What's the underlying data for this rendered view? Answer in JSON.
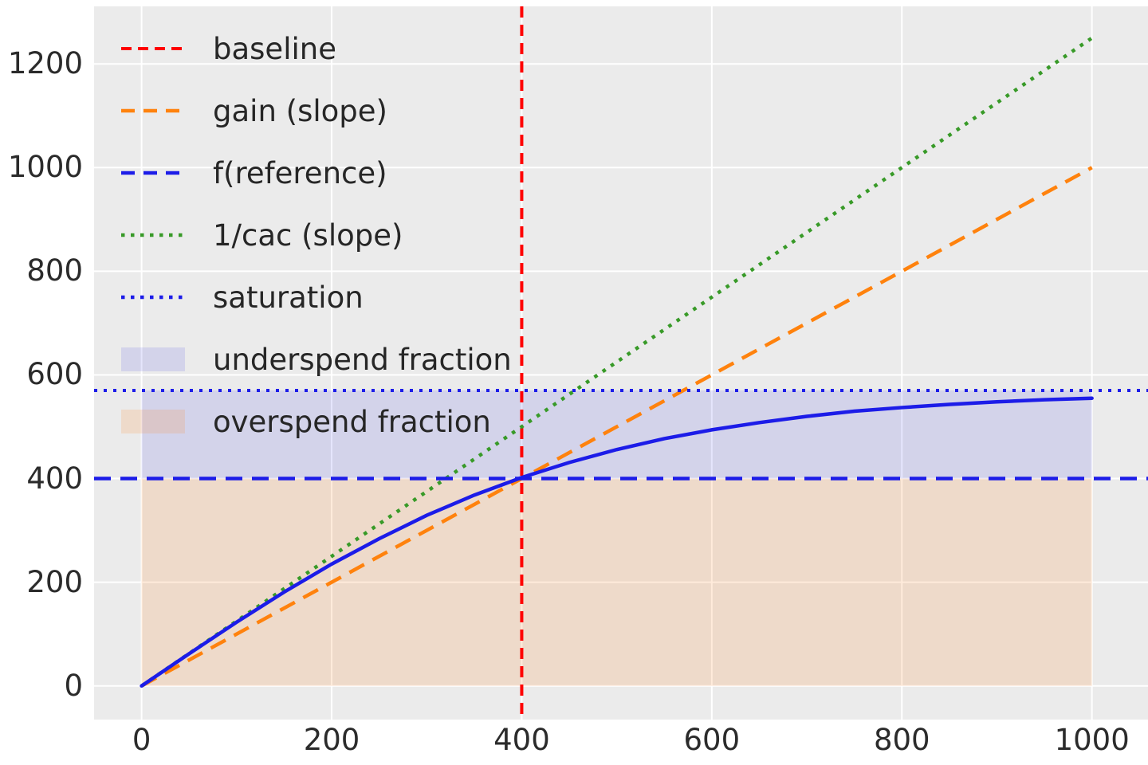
{
  "figure": {
    "bg": "#ffffff",
    "axes_bg": "#ebebeb",
    "grid_color": "#ffffff",
    "tick_color": "#2b2b2b",
    "legend_text_color": "#262626"
  },
  "chart_data": {
    "type": "line",
    "title": "",
    "xlabel": "",
    "ylabel": "",
    "xlim": [
      -50,
      1059
    ],
    "ylim": [
      -65,
      1311
    ],
    "x_ticks": [
      0,
      200,
      400,
      600,
      800,
      1000
    ],
    "y_ticks": [
      0,
      200,
      400,
      600,
      800,
      1000,
      1200
    ],
    "grid": true,
    "legend_position": "upper left",
    "legend": [
      "baseline",
      "gain (slope)",
      "f(reference)",
      "1/cac (slope)",
      "saturation",
      "underspend fraction",
      "overspend fraction"
    ],
    "lines": {
      "baseline": {
        "orientation": "vertical",
        "x": 400,
        "color": "#ff0000",
        "linestyle": "dashed",
        "dash": "14 9",
        "width": 4
      },
      "gain": {
        "orientation": "segment",
        "x": [
          0,
          1000
        ],
        "y": [
          0,
          1000
        ],
        "slope": 1,
        "color": "#ff820d",
        "linestyle": "dashed",
        "dash": "21 12",
        "width": 4.5
      },
      "f_reference": {
        "orientation": "horizontal",
        "y": 400,
        "color": "#1c1ce8",
        "linestyle": "dashed",
        "dash": "21 12",
        "width": 4.5
      },
      "inv_cac": {
        "orientation": "segment",
        "x": [
          0,
          1000
        ],
        "y": [
          0,
          1250
        ],
        "slope": 1.25,
        "color": "#389a28",
        "linestyle": "dotted",
        "dash": "4.5 8",
        "width": 4.5
      },
      "saturation": {
        "orientation": "horizontal",
        "y": 570,
        "color": "#1c1ce8",
        "linestyle": "dotted",
        "dash": "4 8",
        "width": 4
      }
    },
    "curve": {
      "label": "response curve",
      "color": "#1c1ce8",
      "width": 4.5,
      "formula": "f(x) = 570*tanh(x/456)",
      "x": [
        0,
        50,
        100,
        150,
        200,
        250,
        300,
        350,
        400,
        450,
        500,
        550,
        600,
        650,
        700,
        750,
        800,
        850,
        900,
        950,
        1000
      ],
      "y": [
        0,
        62,
        123,
        181,
        235,
        284,
        329,
        368,
        402,
        431,
        456,
        477,
        494,
        508,
        520,
        530,
        537,
        543,
        548,
        552,
        555
      ]
    },
    "regions": {
      "underspend": {
        "x": [
          0,
          1000
        ],
        "y": [
          400,
          570
        ],
        "color": "#0000e0",
        "opacity": 0.1
      },
      "overspend": {
        "x": [
          0,
          1000
        ],
        "y": [
          0,
          400
        ],
        "color": "#ff8020",
        "opacity": 0.16
      }
    }
  }
}
